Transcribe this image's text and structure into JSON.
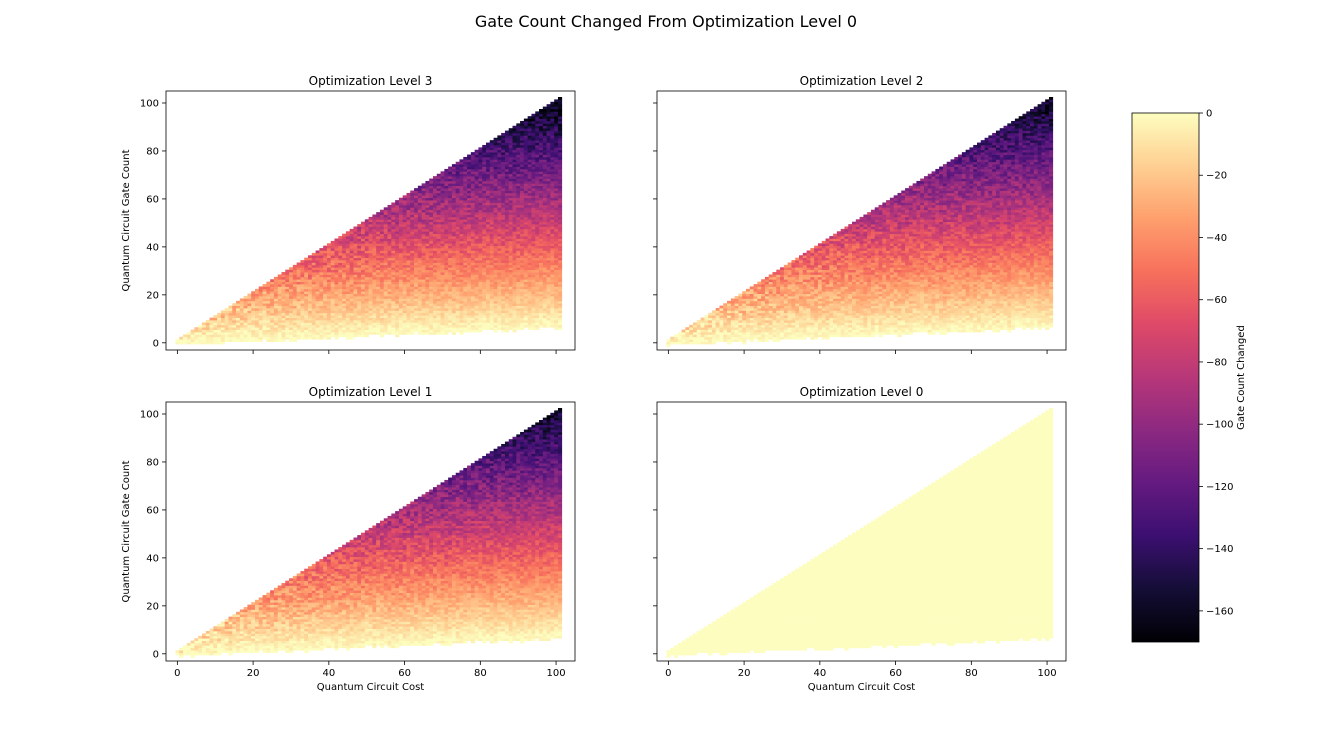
{
  "chart_data": {
    "type": "heatmap",
    "title": "Gate Count Changed From Optimization Level 0",
    "xlabel": "Quantum Circuit Cost",
    "ylabel": "Quantum Circuit Gate Count",
    "xlim": [
      -3,
      105
    ],
    "ylim": [
      -3,
      105
    ],
    "xticks": [
      0,
      20,
      40,
      60,
      80,
      100
    ],
    "yticks": [
      0,
      20,
      40,
      60,
      80,
      100
    ],
    "colormap": "magma",
    "colorbar": {
      "label": "Gate Count Changed",
      "range": [
        -170,
        0
      ],
      "ticks": [
        0,
        -20,
        -40,
        -60,
        -80,
        -100,
        -120,
        -140,
        -160
      ]
    },
    "panels": [
      {
        "title": "Optimization Level 3",
        "level": 3
      },
      {
        "title": "Optimization Level 2",
        "level": 2
      },
      {
        "title": "Optimization Level 1",
        "level": 1
      },
      {
        "title": "Optimization Level 0",
        "level": 0,
        "constant_value": 0
      }
    ],
    "data_region": {
      "x_range": [
        0,
        101
      ],
      "upper_bound": "gate_count ≈ cost + 1",
      "lower_bound": "gate_count ≈ cost / 14",
      "value_trend": "≈ 0 near lower bound, decreasing to ≈ -170 near upper bound"
    }
  }
}
